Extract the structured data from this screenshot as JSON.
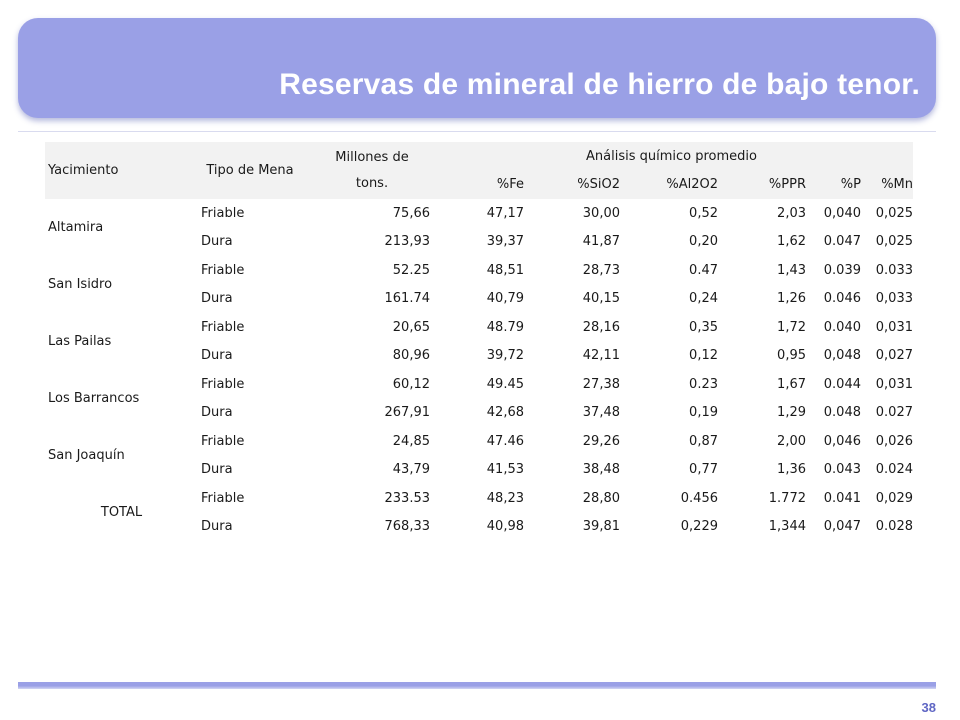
{
  "slide": {
    "title": "Reservas de mineral de hierro de bajo tenor.",
    "page_number": "38"
  },
  "table": {
    "headers": {
      "yacimiento": "Yacimiento",
      "tipo": "Tipo de Mena",
      "millones": "Millones de tons.",
      "analisis": "Análisis químico promedio",
      "fe": "%Fe",
      "sio2": "%SiO2",
      "al2o2": "%Al2O2",
      "ppr": "%PPR",
      "p": "%P",
      "mn": "%Mn"
    },
    "groups": [
      {
        "name": "Altamira",
        "rows": [
          {
            "tipo": "Friable",
            "millones": "75,66",
            "fe": "47,17",
            "sio2": "30,00",
            "al2o2": "0,52",
            "ppr": "2,03",
            "p": "0,040",
            "mn": "0,025"
          },
          {
            "tipo": "Dura",
            "millones": "213,93",
            "fe": "39,37",
            "sio2": "41,87",
            "al2o2": "0,20",
            "ppr": "1,62",
            "p": "0.047",
            "mn": "0,025"
          }
        ]
      },
      {
        "name": "San Isidro",
        "rows": [
          {
            "tipo": "Friable",
            "millones": "52.25",
            "fe": "48,51",
            "sio2": "28,73",
            "al2o2": "0.47",
            "ppr": "1,43",
            "p": "0.039",
            "mn": "0.033"
          },
          {
            "tipo": "Dura",
            "millones": "161.74",
            "fe": "40,79",
            "sio2": "40,15",
            "al2o2": "0,24",
            "ppr": "1,26",
            "p": "0.046",
            "mn": "0,033"
          }
        ]
      },
      {
        "name": "Las Pailas",
        "rows": [
          {
            "tipo": "Friable",
            "millones": "20,65",
            "fe": "48.79",
            "sio2": "28,16",
            "al2o2": "0,35",
            "ppr": "1,72",
            "p": "0.040",
            "mn": "0,031"
          },
          {
            "tipo": "Dura",
            "millones": "80,96",
            "fe": "39,72",
            "sio2": "42,11",
            "al2o2": "0,12",
            "ppr": "0,95",
            "p": "0,048",
            "mn": "0,027"
          }
        ]
      },
      {
        "name": "Los Barrancos",
        "rows": [
          {
            "tipo": "Friable",
            "millones": "60,12",
            "fe": "49.45",
            "sio2": "27,38",
            "al2o2": "0.23",
            "ppr": "1,67",
            "p": "0.044",
            "mn": "0,031"
          },
          {
            "tipo": "Dura",
            "millones": "267,91",
            "fe": "42,68",
            "sio2": "37,48",
            "al2o2": "0,19",
            "ppr": "1,29",
            "p": "0.048",
            "mn": "0.027"
          }
        ]
      },
      {
        "name": "San Joaquín",
        "rows": [
          {
            "tipo": "Friable",
            "millones": "24,85",
            "fe": "47.46",
            "sio2": "29,26",
            "al2o2": "0,87",
            "ppr": "2,00",
            "p": "0,046",
            "mn": "0,026"
          },
          {
            "tipo": "Dura",
            "millones": "43,79",
            "fe": "41,53",
            "sio2": "38,48",
            "al2o2": "0,77",
            "ppr": "1,36",
            "p": "0.043",
            "mn": "0.024"
          }
        ]
      },
      {
        "name": "TOTAL",
        "rows": [
          {
            "tipo": "Friable",
            "millones": "233.53",
            "fe": "48,23",
            "sio2": "28,80",
            "al2o2": "0.456",
            "ppr": "1.772",
            "p": "0.041",
            "mn": "0,029"
          },
          {
            "tipo": "Dura",
            "millones": "768,33",
            "fe": "40,98",
            "sio2": "39,81",
            "al2o2": "0,229",
            "ppr": "1,344",
            "p": "0,047",
            "mn": "0.028"
          }
        ]
      }
    ]
  },
  "colors": {
    "banner": "#9aa0e6",
    "header_row": "#f2f2f2",
    "page_number": "#5f66c4"
  }
}
